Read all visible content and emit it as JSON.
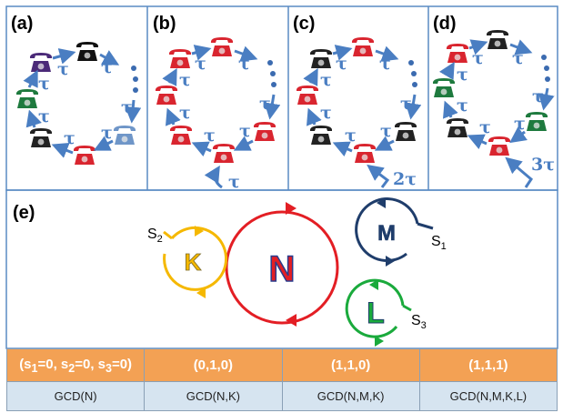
{
  "panels": [
    {
      "label": "(a)",
      "tau_labels": [
        "τ",
        "τ",
        "τ",
        "τ",
        "τ",
        "τ",
        "τ"
      ]
    },
    {
      "label": "(b)",
      "tau_labels": [
        "τ",
        "τ",
        "τ",
        "τ",
        "τ",
        "τ",
        "τ",
        "τ"
      ]
    },
    {
      "label": "(c)",
      "tau_labels": [
        "τ",
        "τ",
        "τ",
        "τ",
        "τ",
        "τ",
        "τ"
      ],
      "extra_label": "2τ"
    },
    {
      "label": "(d)",
      "tau_labels": [
        "τ",
        "τ",
        "τ",
        "τ",
        "τ",
        "τ",
        "τ"
      ],
      "extra_label": "3τ"
    }
  ],
  "panel_e": {
    "label": "(e)",
    "rings": {
      "N": "N",
      "M": "M",
      "K": "K",
      "L": "L"
    },
    "switches": {
      "s1": {
        "letter": "S",
        "index": "1"
      },
      "s2": {
        "letter": "S",
        "index": "2"
      },
      "s3": {
        "letter": "S",
        "index": "3"
      }
    }
  },
  "table": {
    "headers": [
      "(s",
      "1",
      "=0, s",
      "2",
      "=0, s",
      "3",
      "=0)",
      "(0,1,0)",
      "(1,1,0)",
      "(1,1,1)"
    ],
    "header_cells": [
      {
        "parts": [
          "(s",
          "1",
          "=0, s",
          "2",
          "=0, s",
          "3",
          "=0)"
        ]
      },
      {
        "text": "(0,1,0)"
      },
      {
        "text": "(1,1,0)"
      },
      {
        "text": "(1,1,1)"
      }
    ],
    "values": [
      "GCD(N)",
      "GCD(N,K)",
      "GCD(N,M,K)",
      "GCD(N,M,K,L)"
    ]
  },
  "colors": {
    "arrow": "#4a7ec2",
    "frame": "#5a8bc4",
    "ring_N": "#e31e24",
    "ring_M": "#1f3d6b",
    "ring_K": "#f5b800",
    "ring_L": "#1aaa3c",
    "red_phone": "#d9252f",
    "header_bg": "#f3a154",
    "value_bg": "#d6e4f0"
  }
}
